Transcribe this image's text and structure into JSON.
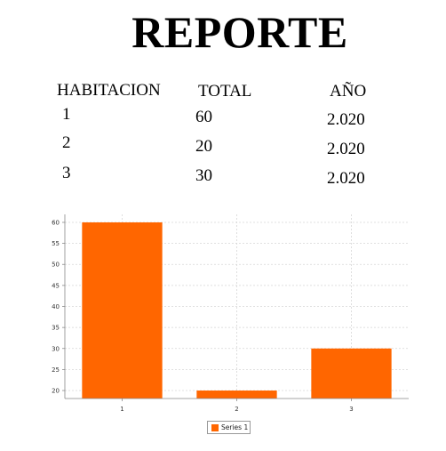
{
  "report": {
    "title": "REPORTE",
    "columns": [
      "HABITACION",
      "TOTAL",
      "AÑO"
    ],
    "rows": [
      {
        "habitacion": "1",
        "total": "60",
        "anio": "2.020"
      },
      {
        "habitacion": "2",
        "total": "20",
        "anio": "2.020"
      },
      {
        "habitacion": "3",
        "total": "30",
        "anio": "2.020"
      }
    ]
  },
  "chart_data": {
    "type": "bar",
    "categories": [
      "1",
      "2",
      "3"
    ],
    "series": [
      {
        "name": "Series 1",
        "values": [
          60,
          20,
          30
        ],
        "color": "#ff6600"
      }
    ],
    "yticks": [
      20,
      25,
      30,
      35,
      40,
      45,
      50,
      55,
      60
    ],
    "ylim": [
      18.1,
      61.9
    ],
    "grid": true,
    "legend": "bottom-center",
    "title": "",
    "xlabel": "",
    "ylabel": ""
  }
}
